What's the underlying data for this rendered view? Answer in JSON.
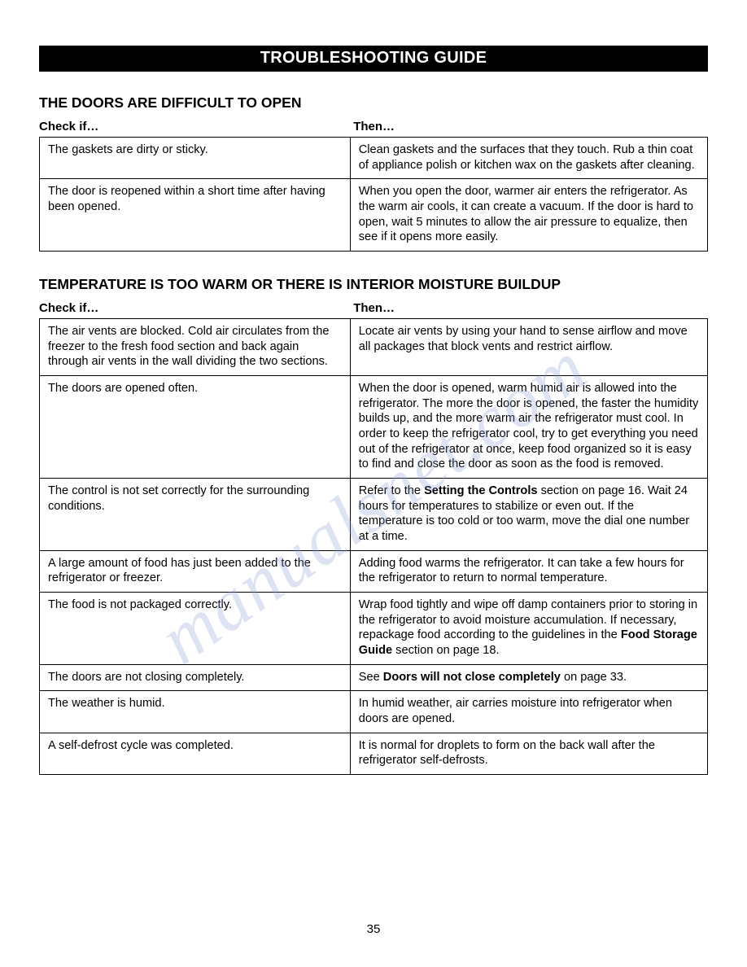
{
  "banner_title": "TROUBLESHOOTING GUIDE",
  "watermark_text": "manualsnet.com",
  "page_number": "35",
  "col_header_check": "Check if…",
  "col_header_then": "Then…",
  "section1": {
    "title": "THE DOORS ARE DIFFICULT TO OPEN",
    "rows": [
      {
        "check": "The gaskets are dirty or sticky.",
        "then": "Clean gaskets and the surfaces that they touch. Rub a thin coat of appliance polish or kitchen wax on the gaskets after cleaning."
      },
      {
        "check": "The door is reopened within a short time after having been opened.",
        "then": "When you open the door, warmer air enters the refrigerator. As the warm air cools, it can create a vacuum. If the door is hard to open, wait 5 minutes to allow the air pressure to equalize, then see if it opens more easily."
      }
    ]
  },
  "section2": {
    "title": "TEMPERATURE IS TOO WARM OR THERE IS INTERIOR MOISTURE BUILDUP",
    "rows": [
      {
        "check": "The air vents are blocked. Cold air circulates from the freezer to the fresh food section and back again through air vents in the wall dividing the two sections.",
        "then": "Locate air vents by using your hand to sense airflow and move all packages that block vents and restrict airflow."
      },
      {
        "check": "The doors are opened often.",
        "then": "When the door is opened, warm humid air is allowed into the refrigerator. The more the door is opened, the faster the humidity builds up, and the more warm air the refrigerator must cool. In order to keep the refrigerator cool, try to get everything you need out of the refrigerator at once, keep food organized so it is easy to find and close the door as soon as the food is removed."
      },
      {
        "check": "The control is not set correctly for the surrounding conditions.",
        "then_parts": {
          "pre": "Refer to the ",
          "bold1": "Setting the Controls",
          "mid": " section on page 16. Wait 24 hours for temperatures to stabilize or even out. If the temperature is too cold or too warm, move the dial one number at a time."
        }
      },
      {
        "check": "A large amount of food has just been added to the refrigerator or freezer.",
        "then": "Adding food warms the refrigerator. It can take a few hours for the refrigerator to return to normal temperature."
      },
      {
        "check": "The food is not packaged correctly.",
        "then_parts": {
          "pre": "Wrap food tightly and wipe off damp containers prior to storing in the refrigerator to avoid moisture accumulation. If necessary, repackage food according to the guidelines in the ",
          "bold1": "Food Storage Guide",
          "mid": " section on page 18."
        }
      },
      {
        "check": "The doors are not closing completely.",
        "then_parts": {
          "pre": "See ",
          "bold1": "Doors will not close completely",
          "mid": " on page 33."
        }
      },
      {
        "check": "The weather is humid.",
        "then": "In humid weather, air carries moisture into refrigerator when doors are opened."
      },
      {
        "check": "A self-defrost cycle was completed.",
        "then": "It is normal for droplets to form on the back wall after the refrigerator self-defrosts."
      }
    ]
  }
}
